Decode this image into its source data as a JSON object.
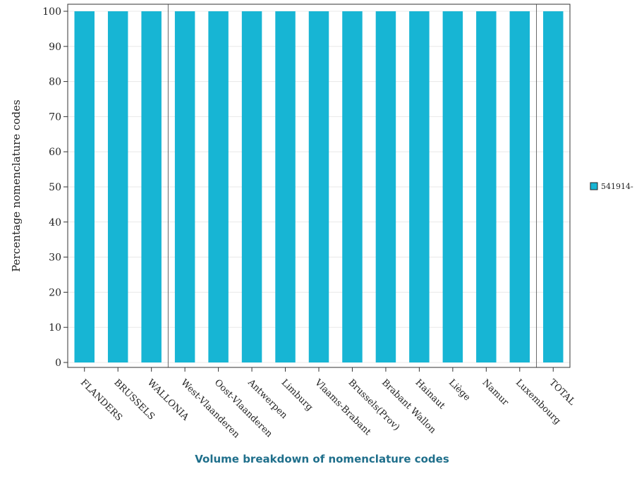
{
  "chart_data": {
    "type": "bar",
    "categories": [
      "FLANDERS",
      "BRUSSELS",
      "WALLONIA",
      "West-Vlaanderen",
      "Oost-Vlaanderen",
      "Antwerpen",
      "Limburg",
      "Vlaams-Brabant",
      "Brussels(Prov)",
      "Brabant Wallon",
      "Hainaut",
      "Liège",
      "Namur",
      "Luxembourg",
      "TOTAL"
    ],
    "series": [
      {
        "name": "541914-",
        "values": [
          100,
          100,
          100,
          100,
          100,
          100,
          100,
          100,
          100,
          100,
          100,
          100,
          100,
          100,
          100
        ],
        "color": "#17b5d4"
      }
    ],
    "ylabel": "Percentage nomenclature codes",
    "xlabel": "Volume breakdown of nomenclature codes",
    "ylim": [
      0,
      100
    ],
    "yticks": [
      0,
      10,
      20,
      30,
      40,
      50,
      60,
      70,
      80,
      90,
      100
    ],
    "group_separators_after": [
      "WALLONIA",
      "Luxembourg"
    ],
    "grid": true,
    "legend_position": "right"
  }
}
